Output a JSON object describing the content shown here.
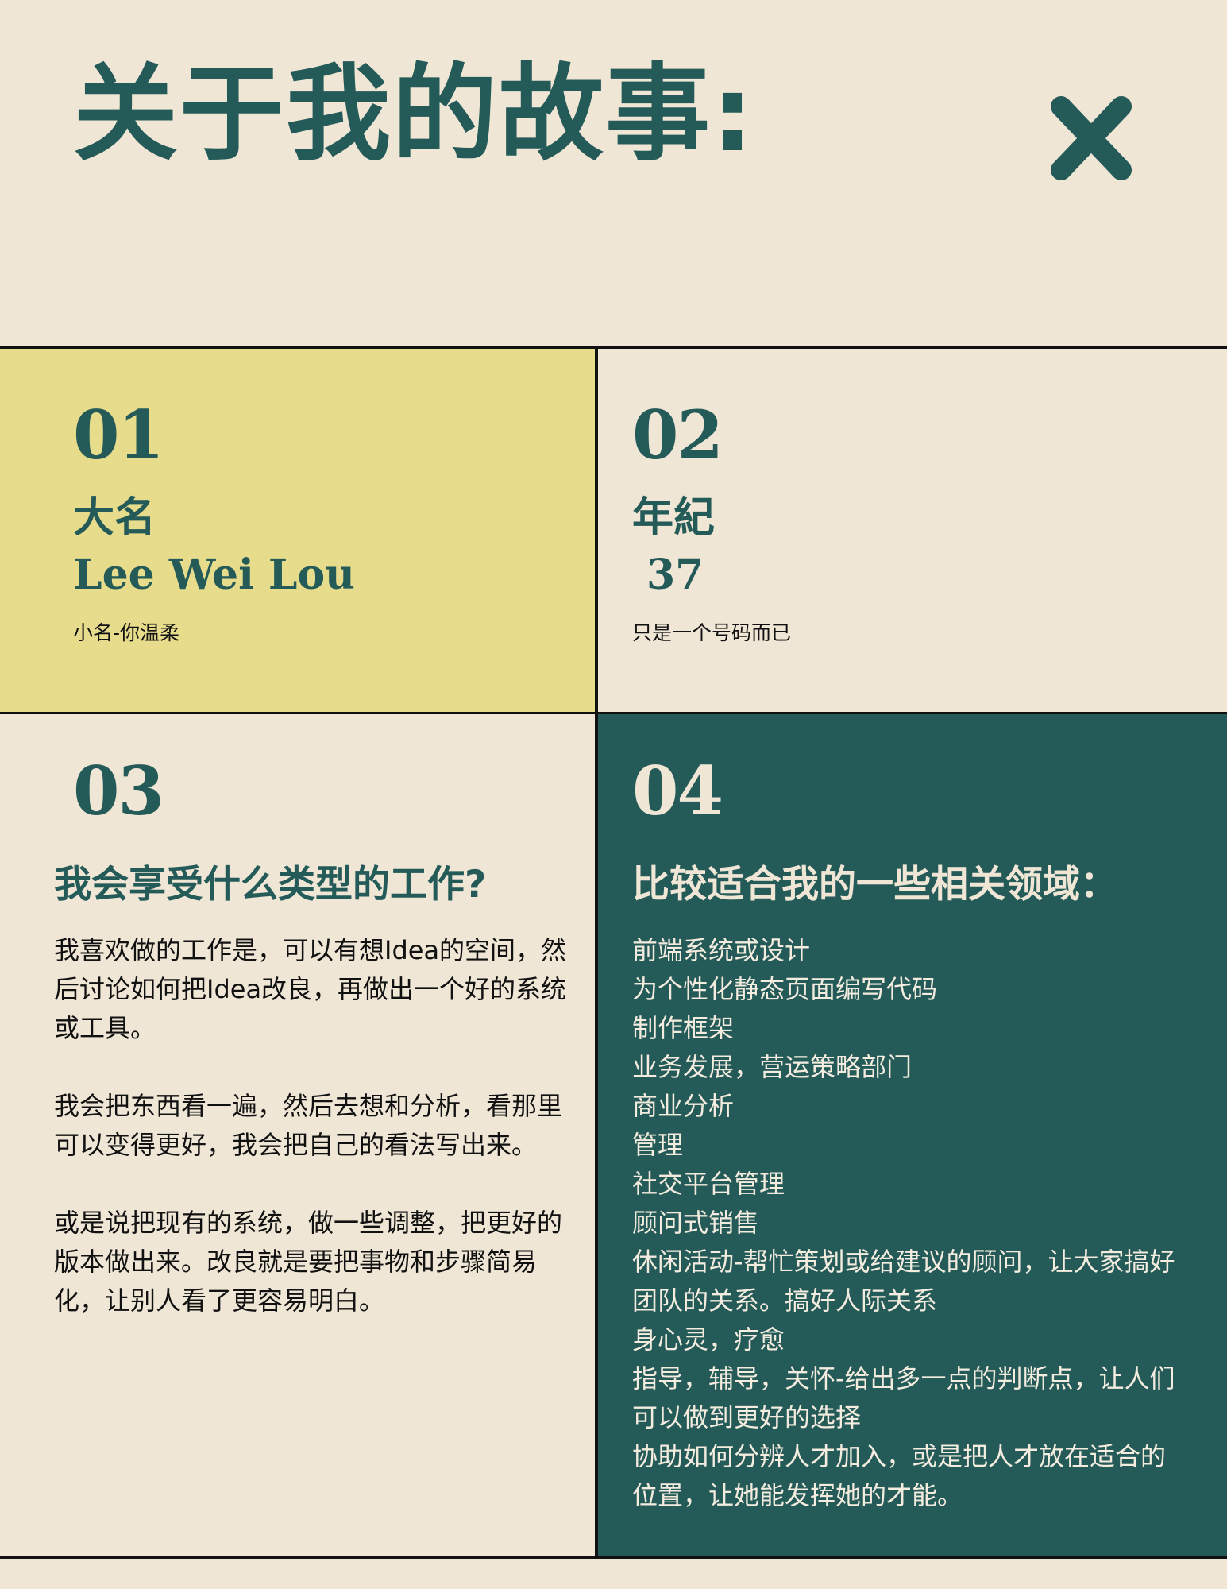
{
  "header": {
    "title": "关于我的故事:",
    "close_icon": "close-icon"
  },
  "colors": {
    "background": "#efe6d6",
    "accent_teal": "#245a58",
    "accent_yellow": "#e6dc8c",
    "text_dark": "#111111"
  },
  "cards": {
    "name": {
      "number": "01",
      "label": "大名",
      "value": "Lee Wei Lou",
      "note": "小名-你温柔"
    },
    "age": {
      "number": "02",
      "label": "年紀",
      "value": "37",
      "note": "只是一个号码而已"
    },
    "work": {
      "number": "03",
      "heading": "我会享受什么类型的工作?",
      "paragraphs": [
        "我喜欢做的工作是，可以有想Idea的空间，然后讨论如何把Idea改良，再做出一个好的系统或工具。",
        "我会把东西看一遍，然后去想和分析，看那里可以变得更好，我会把自己的看法写出来。",
        "或是说把现有的系统，做一些调整，把更好的版本做出来。改良就是要把事物和步骤简易化，让别人看了更容易明白。"
      ]
    },
    "fields": {
      "number": "04",
      "heading": "比较适合我的一些相关领域：",
      "items": [
        "前端系统或设计",
        "为个性化静态页面编写代码",
        "制作框架",
        "业务发展，营运策略部门",
        "商业分析",
        "管理",
        "社交平台管理",
        "顾问式销售",
        "休闲活动-帮忙策划或给建议的顾问，让大家搞好团队的关系。搞好人际关系",
        "身心灵，疗愈",
        "指导，辅导，关怀-给出多一点的判断点，让人们可以做到更好的选择",
        "协助如何分辨人才加入，或是把人才放在适合的位置，让她能发挥她的才能。"
      ]
    }
  }
}
